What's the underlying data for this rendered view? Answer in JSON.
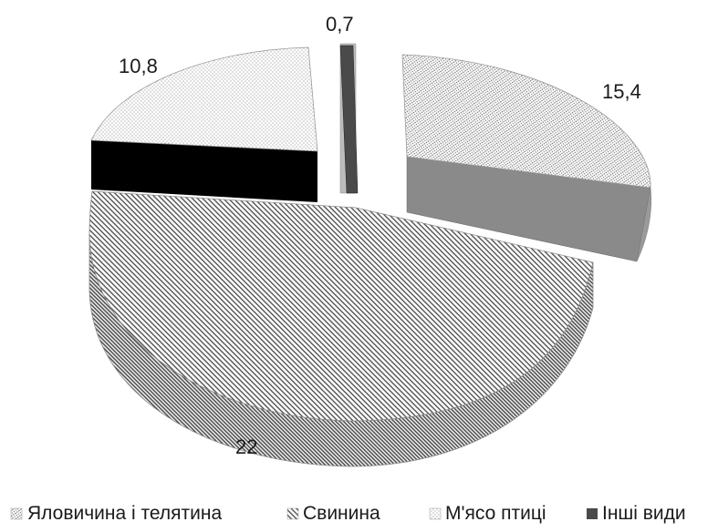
{
  "chart_data": {
    "type": "pie",
    "title": "",
    "categories": [
      "Яловичина і телятина",
      "Свинина",
      "М'ясо птиці",
      "Інші види"
    ],
    "values": [
      15.4,
      22,
      10.8,
      0.7
    ],
    "data_labels": [
      "15,4",
      "22",
      "10,8",
      "0,7"
    ],
    "exploded": true,
    "three_d": true,
    "legend": {
      "position": "bottom"
    },
    "colors": {
      "yalovychyna": "#e6e6e6",
      "svynyna": "#dcdcdc",
      "miaso_ptytsi": "#d0d0d0",
      "inshi_vydy": "#4a4a4a",
      "side_light": "#8a8a8a",
      "side_dark": "#000000"
    }
  }
}
